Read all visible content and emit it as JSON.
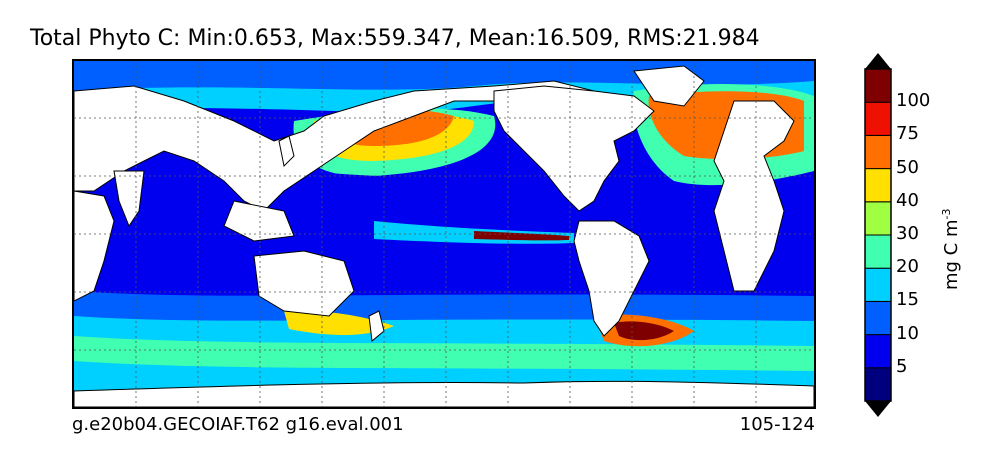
{
  "title": "Total Phyto C: Min:0.653, Max:559.347, Mean:16.509, RMS:21.984",
  "footer": {
    "left": "g.e20b04.GECOIAF.T62 g16.eval.001",
    "right": "105-124"
  },
  "colorbar": {
    "units_base": "mg C m",
    "units_exp": "-3",
    "extend": "both",
    "levels": [
      {
        "label": "",
        "color": "#00007f"
      },
      {
        "label": "5",
        "color": "#0000ee"
      },
      {
        "label": "10",
        "color": "#0060ff"
      },
      {
        "label": "15",
        "color": "#00d0ff"
      },
      {
        "label": "20",
        "color": "#40ffb0"
      },
      {
        "label": "30",
        "color": "#a0ff40"
      },
      {
        "label": "40",
        "color": "#ffe000"
      },
      {
        "label": "50",
        "color": "#ff7000"
      },
      {
        "label": "75",
        "color": "#ee1000"
      },
      {
        "label": "100",
        "color": "#7f0000"
      }
    ]
  },
  "map": {
    "projection": "cylindrical",
    "land_color": "#ffffff",
    "ocean_base_color": "#0000ee",
    "gridlines": "dashed"
  }
}
